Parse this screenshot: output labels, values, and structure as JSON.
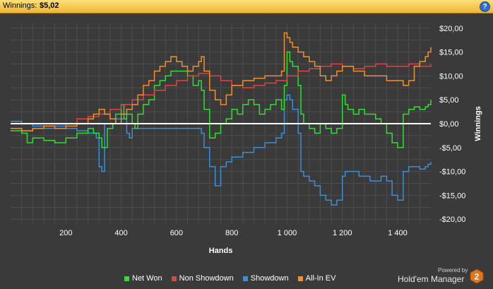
{
  "header": {
    "label": "Winnings:",
    "value": "$5,02",
    "help_glyph": "?"
  },
  "footer": {
    "powered_by": "Powered by",
    "brand": "Hold'em Manager",
    "logo_text": "2"
  },
  "colors": {
    "background": "#3a3a3a",
    "grid": "#4d4d4d",
    "zero_line": "#ffffff",
    "net_won": "#33dd33",
    "non_showdown": "#dd4444",
    "showdown": "#3d8ed8",
    "allin_ev": "#f09030"
  },
  "chart_data": {
    "type": "line",
    "xlabel": "Hands",
    "ylabel": "Winnings",
    "xlim": [
      0,
      1520
    ],
    "ylim": [
      -21,
      21
    ],
    "xticks": [
      {
        "v": 200,
        "label": "200"
      },
      {
        "v": 400,
        "label": "400"
      },
      {
        "v": 600,
        "label": "600"
      },
      {
        "v": 800,
        "label": "800"
      },
      {
        "v": 1000,
        "label": "1 000"
      },
      {
        "v": 1200,
        "label": "1 200"
      },
      {
        "v": 1400,
        "label": "1 400"
      }
    ],
    "yticks": [
      {
        "v": 20,
        "label": "$20,00"
      },
      {
        "v": 15,
        "label": "$15,00"
      },
      {
        "v": 10,
        "label": "$10,00"
      },
      {
        "v": 5,
        "label": "$5,00"
      },
      {
        "v": 0,
        "label": "$0,00"
      },
      {
        "v": -5,
        "label": "-$5,00"
      },
      {
        "v": -10,
        "label": "-$10,00"
      },
      {
        "v": -15,
        "label": "-$15,00"
      },
      {
        "v": -20,
        "label": "-$20,00"
      }
    ],
    "grid": true,
    "legend_position": "bottom",
    "series": [
      {
        "name": "Net Won",
        "color": "#33dd33",
        "x": [
          0,
          40,
          60,
          80,
          120,
          160,
          200,
          240,
          280,
          300,
          320,
          330,
          350,
          370,
          380,
          400,
          410,
          420,
          440,
          450,
          460,
          480,
          500,
          520,
          540,
          560,
          580,
          600,
          640,
          660,
          680,
          690,
          700,
          720,
          740,
          760,
          780,
          800,
          820,
          840,
          860,
          880,
          900,
          920,
          940,
          960,
          980,
          990,
          1000,
          1010,
          1020,
          1040,
          1050,
          1060,
          1080,
          1100,
          1120,
          1140,
          1160,
          1180,
          1200,
          1210,
          1220,
          1240,
          1260,
          1280,
          1300,
          1320,
          1340,
          1360,
          1380,
          1400,
          1420,
          1440,
          1460,
          1480,
          1500,
          1510,
          1520
        ],
        "y": [
          -1.5,
          -2,
          -4,
          -3,
          -3.5,
          -4,
          -3,
          -2,
          -1,
          -2,
          -3,
          -5,
          -1,
          0,
          2,
          4,
          1,
          2,
          0,
          -1,
          2,
          4,
          5,
          8,
          9,
          10,
          11,
          11,
          10,
          8,
          9,
          7,
          3,
          -3,
          -2,
          0,
          1,
          3,
          2,
          4,
          5,
          4,
          2,
          3,
          4,
          5,
          3,
          8,
          15,
          13,
          12,
          8,
          2,
          0,
          -1,
          -2,
          0,
          -1,
          -2,
          -1,
          6,
          4,
          3,
          2,
          3,
          2,
          2,
          1,
          0,
          -2,
          -4,
          -5,
          2,
          3,
          3.5,
          3,
          3.5,
          4,
          5
        ]
      },
      {
        "name": "Non Showdown",
        "color": "#dd4444",
        "x": [
          0,
          40,
          80,
          120,
          160,
          200,
          240,
          280,
          320,
          360,
          400,
          440,
          480,
          520,
          560,
          600,
          640,
          680,
          720,
          760,
          800,
          840,
          880,
          920,
          960,
          1000,
          1040,
          1080,
          1120,
          1160,
          1200,
          1240,
          1280,
          1320,
          1360,
          1400,
          1440,
          1480,
          1520
        ],
        "y": [
          -1,
          -1.5,
          -1,
          -0.5,
          -1,
          0,
          1,
          1.5,
          2,
          3,
          4,
          5,
          6,
          7,
          8,
          9,
          10,
          10.5,
          10,
          9,
          8,
          7.5,
          8,
          8.5,
          9,
          10,
          11,
          11.5,
          12,
          12.5,
          12,
          11.5,
          12,
          12.5,
          12,
          12,
          12.5,
          12,
          12.5
        ]
      },
      {
        "name": "Showdown",
        "color": "#3d8ed8",
        "x": [
          0,
          40,
          80,
          120,
          160,
          200,
          240,
          280,
          310,
          320,
          330,
          340,
          380,
          400,
          420,
          430,
          440,
          480,
          520,
          560,
          600,
          640,
          680,
          690,
          700,
          720,
          740,
          760,
          780,
          800,
          840,
          880,
          920,
          960,
          980,
          990,
          1000,
          1010,
          1020,
          1040,
          1050,
          1060,
          1080,
          1100,
          1120,
          1140,
          1160,
          1180,
          1200,
          1210,
          1220,
          1260,
          1300,
          1340,
          1360,
          1380,
          1400,
          1420,
          1440,
          1460,
          1480,
          1500,
          1510,
          1520
        ],
        "y": [
          0.5,
          0,
          -0.5,
          -1,
          -0.5,
          -1,
          -1.5,
          -2,
          -3,
          -9,
          -10,
          0,
          1,
          1,
          -2,
          -3,
          -1,
          -1,
          -1,
          -1,
          -1,
          -1,
          -1,
          -2,
          -5,
          -9,
          -13,
          -9,
          -8,
          -7,
          -6,
          -5,
          -4,
          -3,
          -2,
          5,
          6,
          5,
          3,
          -2,
          -10,
          -11,
          -12,
          -13,
          -15,
          -16,
          -17,
          -16,
          -11,
          -10,
          -10,
          -11,
          -12,
          -11,
          -12,
          -15,
          -16,
          -10,
          -9,
          -9,
          -9.5,
          -9,
          -8.5,
          -8
        ]
      },
      {
        "name": "All-In EV",
        "color": "#f09030",
        "x": [
          0,
          40,
          80,
          120,
          160,
          200,
          240,
          280,
          300,
          320,
          340,
          360,
          380,
          400,
          420,
          440,
          460,
          480,
          500,
          520,
          540,
          560,
          580,
          600,
          620,
          640,
          660,
          680,
          690,
          700,
          720,
          740,
          760,
          780,
          800,
          840,
          880,
          920,
          960,
          980,
          990,
          1000,
          1010,
          1020,
          1040,
          1060,
          1080,
          1100,
          1120,
          1140,
          1160,
          1180,
          1200,
          1240,
          1280,
          1320,
          1360,
          1380,
          1400,
          1420,
          1440,
          1460,
          1480,
          1500,
          1510,
          1520
        ],
        "y": [
          -1,
          -1.5,
          -1,
          -0.5,
          -1,
          -0.5,
          0,
          1,
          2,
          3,
          2,
          1,
          0,
          2,
          3,
          4,
          6,
          8,
          9,
          11,
          12,
          13,
          14,
          13,
          12,
          11,
          12,
          13,
          14,
          11,
          7,
          5,
          4,
          6,
          8,
          9,
          9.5,
          10,
          10,
          11,
          19,
          18,
          17,
          16,
          15,
          14,
          13,
          12,
          10,
          9,
          10,
          11,
          12,
          11,
          10,
          10,
          9,
          9,
          9,
          8,
          9,
          12,
          13,
          14,
          15,
          16
        ]
      }
    ]
  }
}
